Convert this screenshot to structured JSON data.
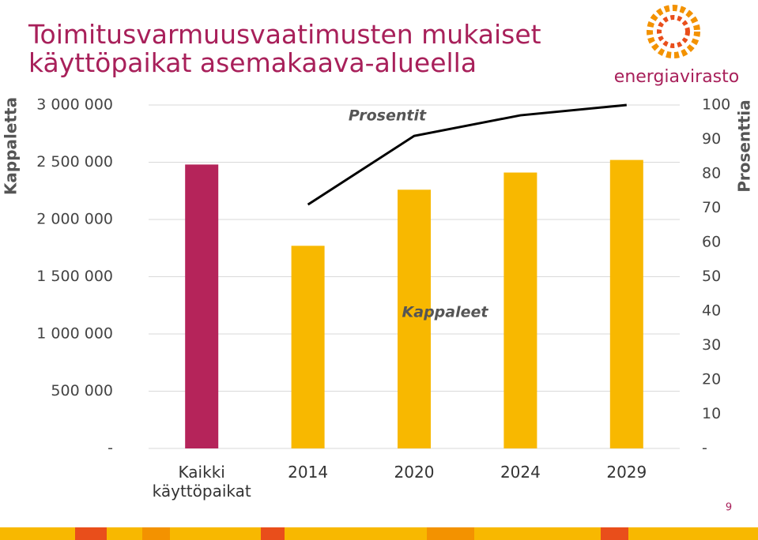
{
  "chart_data": {
    "type": "bar",
    "title": "Toimitusvarmuusvaatimusten mukaiset käyttöpaikat asemakaava-alueella",
    "logo": "energiavirasto",
    "page_number": "9",
    "categories": [
      "Kaikki käyttöpaikat",
      "2014",
      "2020",
      "2024",
      "2029"
    ],
    "series": [
      {
        "name": "Kappaleet",
        "type": "bar",
        "colors": [
          "#b5245a",
          "#f8b800",
          "#f8b800",
          "#f8b800",
          "#f8b800"
        ],
        "values": [
          2480000,
          1770000,
          2260000,
          2410000,
          2520000
        ]
      },
      {
        "name": "Prosentit",
        "type": "line",
        "axis": "y2",
        "color": "#000000",
        "values": [
          null,
          71,
          91,
          97,
          100
        ]
      }
    ],
    "ylabel": "Kappaletta",
    "y2label": "Prosenttia",
    "ylim": [
      0,
      3000000
    ],
    "yticks": [
      {
        "value": 0,
        "label": "-"
      },
      {
        "value": 500000,
        "label": "500 000"
      },
      {
        "value": 1000000,
        "label": "1 000 000"
      },
      {
        "value": 1500000,
        "label": "1 500 000"
      },
      {
        "value": 2000000,
        "label": "2 000 000"
      },
      {
        "value": 2500000,
        "label": "2 500 000"
      },
      {
        "value": 3000000,
        "label": "3 000 000"
      }
    ],
    "y2lim": [
      0,
      100
    ],
    "y2ticks": [
      {
        "value": 0,
        "label": "-"
      },
      10,
      20,
      30,
      40,
      50,
      60,
      70,
      80,
      90,
      100
    ],
    "grid": true
  }
}
